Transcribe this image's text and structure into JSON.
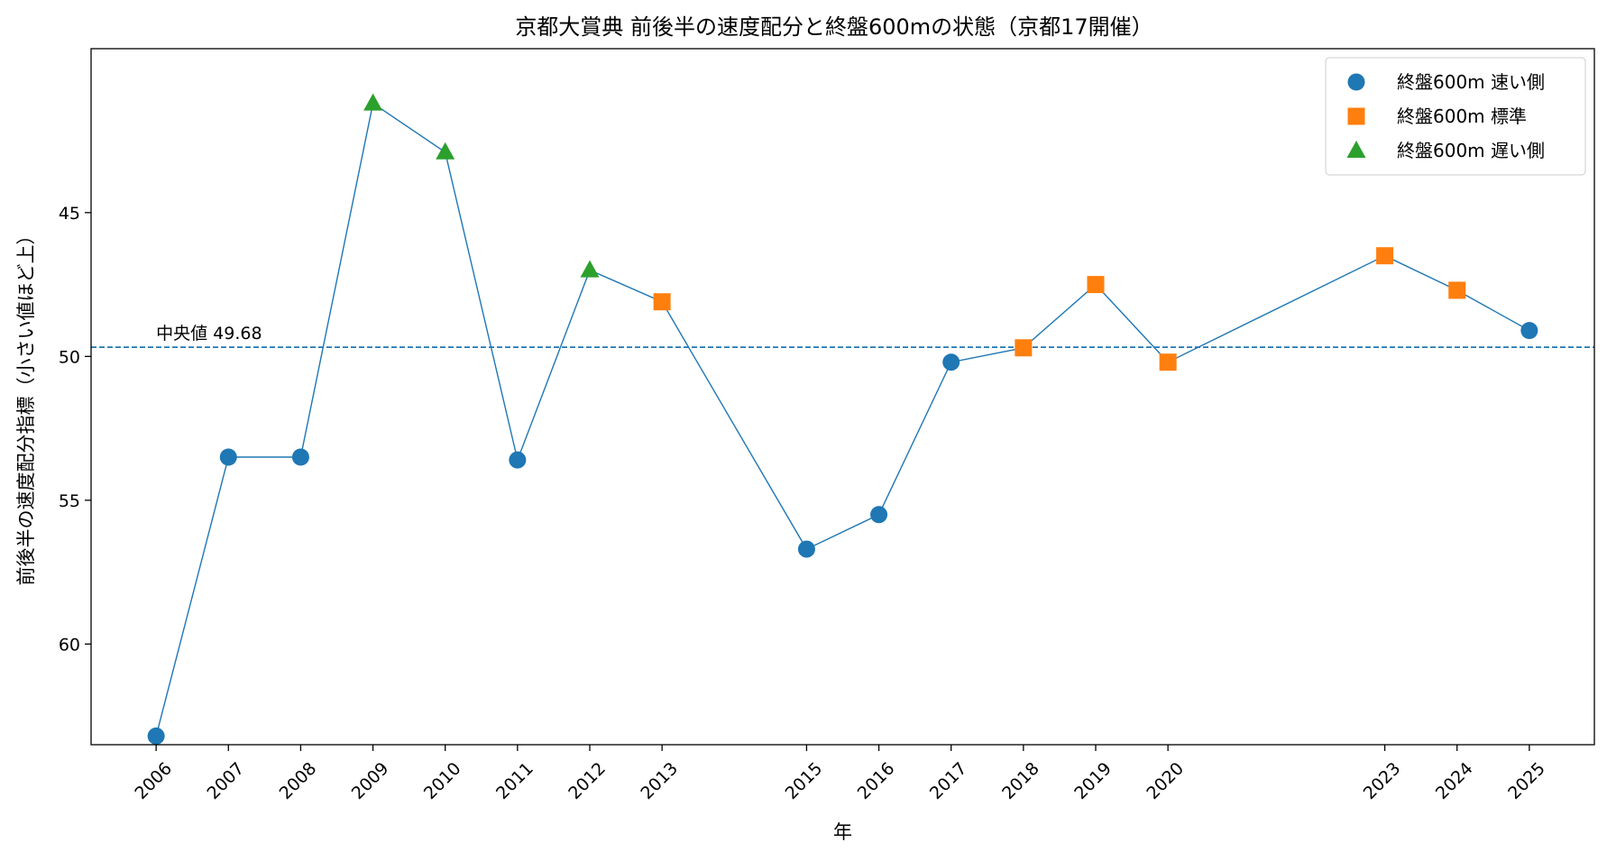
{
  "chart_data": {
    "type": "line",
    "title": "京都大賞典 前後半の速度配分と終盤600mの状態（京都17開催）",
    "xlabel": "年",
    "ylabel": "前後半の速度配分指標（小さい値ほど上）",
    "y_inverted": true,
    "ylim": [
      63.5,
      39.3
    ],
    "yticks": [
      45,
      50,
      55,
      60
    ],
    "x": [
      "2006",
      "2007",
      "2008",
      "2009",
      "2010",
      "2011",
      "2012",
      "2013",
      "2015",
      "2016",
      "2017",
      "2018",
      "2019",
      "2020",
      "2023",
      "2024",
      "2025"
    ],
    "values": [
      63.2,
      53.5,
      53.5,
      41.2,
      42.9,
      53.6,
      47.0,
      48.1,
      56.7,
      55.5,
      50.2,
      49.7,
      47.5,
      50.2,
      46.5,
      47.7,
      49.1
    ],
    "states": [
      "fast",
      "fast",
      "fast",
      "slow",
      "slow",
      "fast",
      "slow",
      "std",
      "fast",
      "fast",
      "fast",
      "std",
      "std",
      "std",
      "std",
      "std",
      "fast"
    ],
    "series": [
      {
        "key": "fast",
        "name": "終盤600m 速い側",
        "color": "#1f77b4",
        "marker": "circle"
      },
      {
        "key": "std",
        "name": "終盤600m 標準",
        "color": "#ff7f0e",
        "marker": "square"
      },
      {
        "key": "slow",
        "name": "終盤600m 遅い側",
        "color": "#2ca02c",
        "marker": "triangle"
      }
    ],
    "line_color": "#1f77b4",
    "median": {
      "value": 49.68,
      "label": "中央値 49.68",
      "color": "#1f77b4"
    },
    "legend_position": "top-right",
    "grid": false
  }
}
